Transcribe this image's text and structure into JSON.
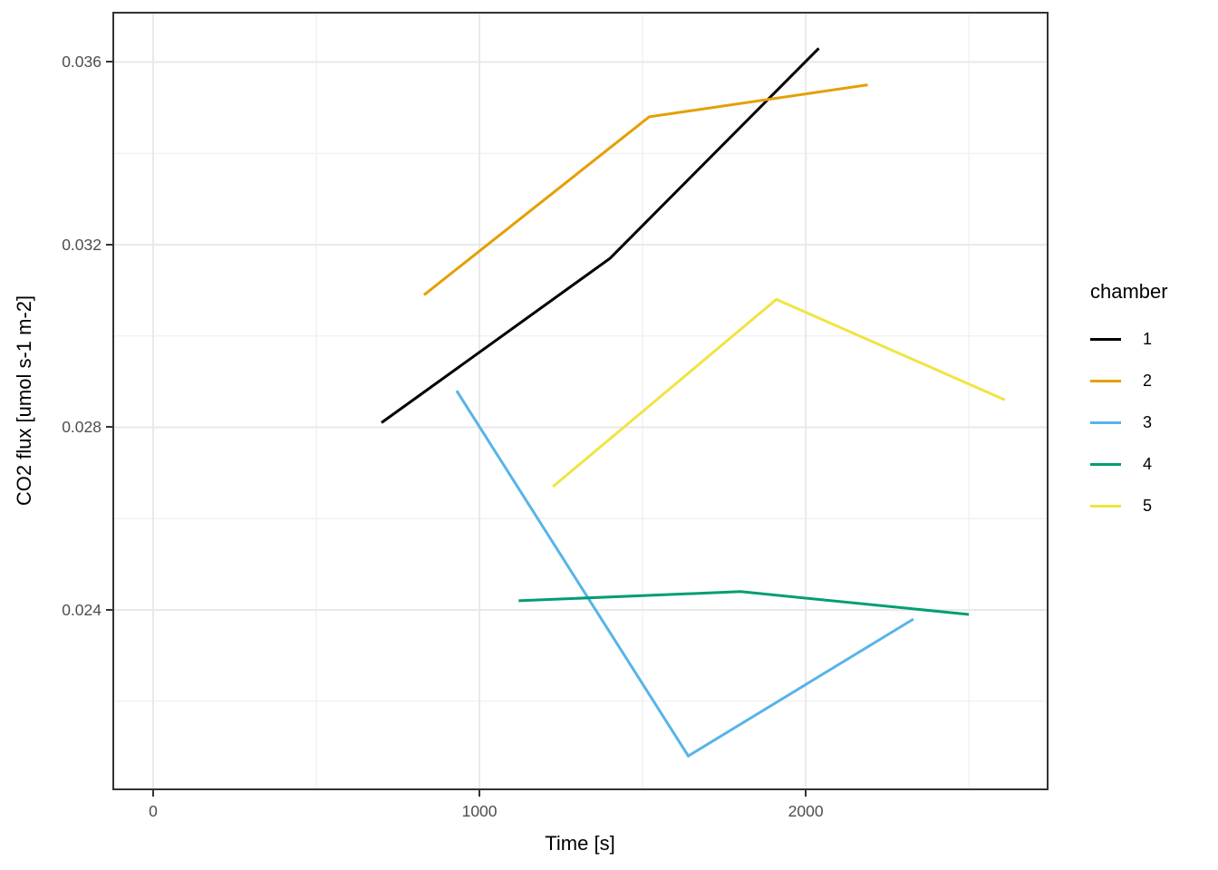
{
  "chart_data": {
    "type": "line",
    "title": "",
    "xlabel": "Time [s]",
    "ylabel": "CO2 flux [umol s-1 m-2]",
    "xlim": [
      -125,
      2744
    ],
    "ylim": [
      0.02005,
      0.0371
    ],
    "grid": true,
    "x_major_ticks": [
      0,
      1000,
      2000
    ],
    "x_tick_labels": [
      "0",
      "1000",
      "2000"
    ],
    "x_minor_ticks": [
      500,
      1500,
      2500
    ],
    "y_major_ticks": [
      0.024,
      0.028,
      0.032,
      0.036
    ],
    "y_tick_labels": [
      "0.024",
      "0.028",
      "0.032",
      "0.036"
    ],
    "y_minor_ticks": [
      0.022,
      0.026,
      0.03,
      0.034
    ],
    "legend_position": "right",
    "legend_title": "chamber",
    "series": [
      {
        "name": "1",
        "color": "#000000",
        "points": [
          [
            700,
            0.0281
          ],
          [
            1400,
            0.0317
          ],
          [
            2040,
            0.0363
          ]
        ]
      },
      {
        "name": "2",
        "color": "#E69F00",
        "points": [
          [
            830,
            0.0309
          ],
          [
            1520,
            0.0348
          ],
          [
            2190,
            0.0355
          ]
        ]
      },
      {
        "name": "3",
        "color": "#56B4E9",
        "points": [
          [
            930,
            0.0288
          ],
          [
            1640,
            0.0208
          ],
          [
            2330,
            0.0238
          ]
        ]
      },
      {
        "name": "4",
        "color": "#009E73",
        "points": [
          [
            1120,
            0.0242
          ],
          [
            1800,
            0.0244
          ],
          [
            2500,
            0.0239
          ]
        ]
      },
      {
        "name": "5",
        "color": "#F0E442",
        "points": [
          [
            1225,
            0.0267
          ],
          [
            1910,
            0.0308
          ],
          [
            2610,
            0.0286
          ]
        ]
      }
    ],
    "style_colors": {
      "panel_border": "#333333",
      "grid_major": "#e9e9e9",
      "grid_minor": "#efefef",
      "tick_mark": "#333333",
      "tick_label": "#4d4d4d",
      "background": "#ffffff"
    }
  }
}
